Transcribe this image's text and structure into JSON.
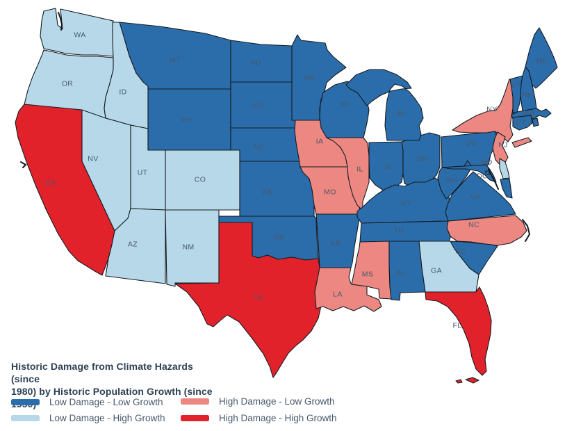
{
  "title": {
    "line1": "Historic Damage from Climate Hazards (since",
    "line2": "1980) by Historic Population Growth (since 1950)"
  },
  "legend": [
    {
      "id": "low-low",
      "label": "Low Damage - Low Growth",
      "color": "#2b6dab"
    },
    {
      "id": "low-high",
      "label": "Low Damage - High Growth",
      "color": "#b7d8e9"
    },
    {
      "id": "high-low",
      "label": "High Damage - Low Growth",
      "color": "#ec8781"
    },
    {
      "id": "high-high",
      "label": "High Damage - High Growth",
      "color": "#e2222b"
    }
  ],
  "colors": {
    "low_low": "#2b6dab",
    "low_high": "#b7d8e9",
    "high_low": "#ec8781",
    "high_high": "#e2222b",
    "border": "#141b20",
    "label_text": "#46586b",
    "title_text": "#2e4154"
  },
  "map": {
    "states": [
      {
        "id": "WA",
        "label": "WA",
        "category": "low_high"
      },
      {
        "id": "OR",
        "label": "OR",
        "category": "low_high"
      },
      {
        "id": "CA",
        "label": "CA",
        "category": "high_high"
      },
      {
        "id": "ID",
        "label": "ID",
        "category": "low_high"
      },
      {
        "id": "NV",
        "label": "NV",
        "category": "low_high"
      },
      {
        "id": "UT",
        "label": "UT",
        "category": "low_high"
      },
      {
        "id": "AZ",
        "label": "AZ",
        "category": "low_high"
      },
      {
        "id": "NM",
        "label": "NM",
        "category": "low_high"
      },
      {
        "id": "MT",
        "label": "MT",
        "category": "low_low"
      },
      {
        "id": "WY",
        "label": "WY",
        "category": "low_low"
      },
      {
        "id": "CO",
        "label": "CO",
        "category": "low_high"
      },
      {
        "id": "ND",
        "label": "ND",
        "category": "low_low"
      },
      {
        "id": "SD",
        "label": "SD",
        "category": "low_low"
      },
      {
        "id": "NE",
        "label": "NE",
        "category": "low_low"
      },
      {
        "id": "KS",
        "label": "KS",
        "category": "low_low"
      },
      {
        "id": "OK",
        "label": "OK",
        "category": "low_low"
      },
      {
        "id": "TX",
        "label": "TX",
        "category": "high_high"
      },
      {
        "id": "MN",
        "label": "MN",
        "category": "low_low"
      },
      {
        "id": "IA",
        "label": "IA",
        "category": "high_low"
      },
      {
        "id": "MO",
        "label": "MO",
        "category": "high_low"
      },
      {
        "id": "AR",
        "label": "AR",
        "category": "low_low"
      },
      {
        "id": "LA",
        "label": "LA",
        "category": "high_low"
      },
      {
        "id": "WI",
        "label": "WI",
        "category": "low_low"
      },
      {
        "id": "IL",
        "label": "IL",
        "category": "high_low"
      },
      {
        "id": "IN",
        "label": "IN",
        "category": "low_low"
      },
      {
        "id": "OH",
        "label": "OH",
        "category": "low_low"
      },
      {
        "id": "MI",
        "label": "MI",
        "category": "low_low"
      },
      {
        "id": "KY",
        "label": "KY",
        "category": "low_low"
      },
      {
        "id": "TN",
        "label": "TN",
        "category": "low_low"
      },
      {
        "id": "MS",
        "label": "MS",
        "category": "high_low"
      },
      {
        "id": "AL",
        "label": "AL",
        "category": "low_low"
      },
      {
        "id": "GA",
        "label": "GA",
        "category": "low_high"
      },
      {
        "id": "FL",
        "label": "FL",
        "category": "high_high"
      },
      {
        "id": "PA",
        "label": "PA",
        "category": "low_low"
      },
      {
        "id": "WV",
        "label": "WV",
        "category": "low_low"
      },
      {
        "id": "VA",
        "label": "VA",
        "category": "low_low"
      },
      {
        "id": "NC",
        "label": "NC",
        "category": "high_low"
      },
      {
        "id": "SC",
        "label": "SC",
        "category": "low_low"
      },
      {
        "id": "NY",
        "label": "NY",
        "category": "high_low"
      },
      {
        "id": "NJ",
        "label": "NJ",
        "category": "high_low"
      },
      {
        "id": "MD",
        "label": "MD",
        "category": "low_low"
      },
      {
        "id": "DE",
        "label": "",
        "category": "low_high"
      },
      {
        "id": "DC",
        "label": "DC",
        "category": "low_low"
      },
      {
        "id": "VT",
        "label": "VT",
        "category": "low_low"
      },
      {
        "id": "NH",
        "label": "NH",
        "category": "low_low"
      },
      {
        "id": "ME",
        "label": "ME",
        "category": "low_low"
      },
      {
        "id": "MA",
        "label": "MA",
        "category": "low_low"
      },
      {
        "id": "RI",
        "label": "",
        "category": "low_low"
      },
      {
        "id": "CT",
        "label": "CT",
        "category": "low_low"
      }
    ]
  }
}
